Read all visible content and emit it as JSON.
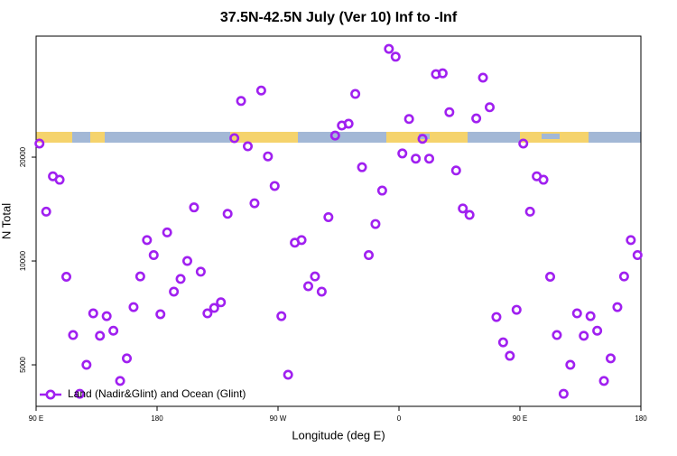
{
  "chart_data": {
    "type": "scatter",
    "title": "37.5N-42.5N July (Ver 10)   Inf to -Inf",
    "xlabel": "Longitude (deg E)",
    "ylabel": "N Total",
    "x": [
      92.5,
      97.5,
      102.5,
      107.5,
      112.5,
      117.5,
      122.5,
      127.5,
      132.5,
      137.5,
      142.5,
      147.5,
      152.5,
      157.5,
      162.5,
      167.5,
      172.5,
      177.5,
      182.5,
      187.5,
      192.5,
      197.5,
      202.5,
      207.5,
      212.5,
      217.5,
      222.5,
      227.5,
      232.5,
      237.5,
      242.5,
      247.5,
      252.5,
      257.5,
      262.5,
      267.5,
      272.5,
      277.5,
      282.5,
      287.5,
      292.5,
      297.5,
      302.5,
      307.5,
      312.5,
      317.5,
      322.5,
      327.5,
      332.5,
      337.5,
      342.5,
      347.5,
      352.5,
      357.5,
      362.5,
      367.5,
      372.5,
      377.5,
      382.5,
      387.5,
      392.5,
      397.5,
      402.5,
      407.5,
      412.5,
      417.5,
      422.5,
      427.5,
      432.5,
      437.5,
      442.5,
      447.5,
      452.5,
      457.5,
      462.5,
      467.5,
      472.5,
      477.5,
      482.5,
      487.5,
      492.5,
      497.5,
      502.5,
      507.5,
      512.5,
      517.5,
      522.5,
      527.5,
      532.5,
      537.5
    ],
    "series": [
      {
        "name": "Land (Nadir&Glint) and Ocean (Glint)",
        "color": "#a020f0",
        "values": [
          21900,
          13900,
          17600,
          17200,
          9000,
          6100,
          4120,
          5000,
          7050,
          6070,
          6920,
          6280,
          4490,
          5220,
          7350,
          9020,
          11500,
          10400,
          7010,
          12100,
          8150,
          8870,
          10000,
          14300,
          9310,
          7050,
          7310,
          7590,
          13700,
          22700,
          29100,
          21500,
          14700,
          31200,
          20100,
          16500,
          6920,
          4680,
          11300,
          11500,
          8450,
          9020,
          8150,
          13400,
          23100,
          24700,
          25000,
          30500,
          18700,
          10400,
          12800,
          16000,
          41200,
          39100,
          20500,
          25800,
          19800,
          22600,
          19800,
          34800,
          35000,
          27000,
          18300,
          14200,
          13600,
          25900,
          34000,
          27900,
          6880,
          5810,
          5310,
          7220,
          21900,
          13900,
          17600,
          17200,
          9000,
          6100,
          4120,
          5000,
          7050,
          6070,
          6920,
          6280,
          4490,
          5220,
          7350,
          9020,
          11500,
          10400
        ]
      }
    ],
    "xlim": [
      90,
      540
    ],
    "xticks": [
      {
        "value": 90,
        "label": "90 E"
      },
      180,
      {
        "value": 270,
        "label": "90 W"
      },
      {
        "value": 360,
        "label": "0"
      },
      {
        "value": 450,
        "label": "90 E"
      },
      {
        "value": 540,
        "label": "180"
      }
    ],
    "ylim": [
      3790,
      44860
    ],
    "yticks": [
      5000,
      10000,
      20000
    ],
    "log_y": true,
    "legend": "bottom-left"
  }
}
